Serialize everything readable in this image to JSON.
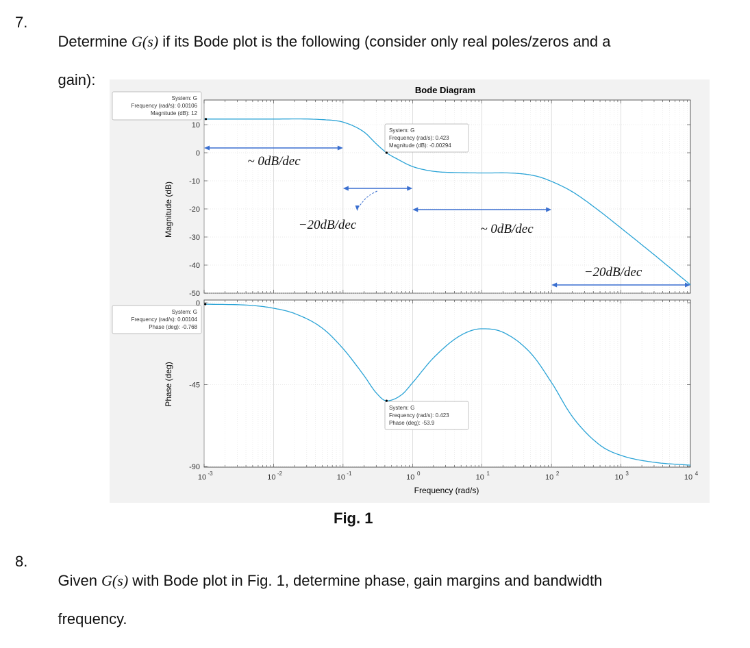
{
  "question7": {
    "number": "7.",
    "text_a": "Determine ",
    "math": "G(s)",
    "text_b": " if its Bode plot is the following (consider only real poles/zeros and a",
    "line2": "gain):"
  },
  "question8": {
    "number": "8.",
    "text_a": "Given ",
    "math": "G(s)",
    "text_b": " with Bode plot in Fig. 1, determine phase, gain margins and bandwidth",
    "line2": "frequency."
  },
  "figure_caption": "Fig. 1",
  "colors": {
    "curve": "#2aa3d6",
    "arrow": "#3a6fd0",
    "plot_bg": "#ffffff",
    "figure_bg": "#f2f2f2"
  },
  "chart_data": [
    {
      "type": "line",
      "panel": "magnitude",
      "title": "Bode Diagram",
      "xlabel": "",
      "ylabel": "Magnitude (dB)",
      "xscale": "log",
      "xlim": [
        0.001,
        10000
      ],
      "ylim": [
        -50,
        12
      ],
      "yticks": [
        10,
        0,
        -10,
        -20,
        -30,
        -40,
        -50
      ],
      "grid": true,
      "series": [
        {
          "x": [
            0.001,
            0.01,
            0.05,
            0.1,
            0.2,
            0.3,
            0.423,
            0.6,
            1,
            2,
            5,
            10,
            30,
            60,
            100,
            200,
            500,
            1000,
            3000,
            10000
          ],
          "values": [
            12,
            12,
            11.8,
            10.9,
            7.4,
            3.2,
            -0.00294,
            -2.2,
            -4.9,
            -6.6,
            -7.1,
            -7.2,
            -7.3,
            -8.3,
            -10.2,
            -13.9,
            -20.9,
            -26.8,
            -36.3,
            -47.0
          ]
        }
      ],
      "datatips": [
        {
          "lines": [
            "System: G",
            "Frequency (rad/s): 0.00106",
            "Magnitude (dB): 12"
          ]
        },
        {
          "lines": [
            "System: G",
            "Frequency (rad/s): 0.423",
            "Magnitude (dB): -0.00294"
          ]
        }
      ],
      "annotations": [
        {
          "text": "~ 0dB/dec"
        },
        {
          "text": "−20dB/dec"
        },
        {
          "text": "~ 0dB/dec"
        },
        {
          "text": "−20dB/dec"
        }
      ]
    },
    {
      "type": "line",
      "panel": "phase",
      "xlabel": "Frequency (rad/s)",
      "ylabel": "Phase (deg)",
      "xscale": "log",
      "xlim": [
        0.001,
        10000
      ],
      "ylim": [
        -90,
        0
      ],
      "yticks": [
        0,
        -45,
        -90
      ],
      "xticks": [
        "10^-3",
        "10^-2",
        "10^-1",
        "10^0",
        "10^1",
        "10^2",
        "10^3",
        "10^4"
      ],
      "grid": true,
      "series": [
        {
          "x": [
            0.001,
            0.005,
            0.01,
            0.02,
            0.05,
            0.1,
            0.2,
            0.3,
            0.423,
            0.7,
            1,
            2,
            5,
            10,
            20,
            50,
            100,
            200,
            500,
            1000,
            3000,
            10000
          ],
          "values": [
            -0.768,
            -1.5,
            -3,
            -5.9,
            -13.9,
            -25.2,
            -40,
            -49.5,
            -53.9,
            -50.5,
            -44,
            -30.3,
            -17.8,
            -14.3,
            -16.2,
            -27.6,
            -43.8,
            -62.6,
            -78.3,
            -83.9,
            -87.7,
            -89.3
          ]
        }
      ],
      "datatips": [
        {
          "lines": [
            "System: G",
            "Frequency (rad/s): 0.00104",
            "Phase (deg): -0.768"
          ]
        },
        {
          "lines": [
            "System: G",
            "Frequency (rad/s): 0.423",
            "Phase (deg): -53.9"
          ]
        }
      ]
    }
  ]
}
